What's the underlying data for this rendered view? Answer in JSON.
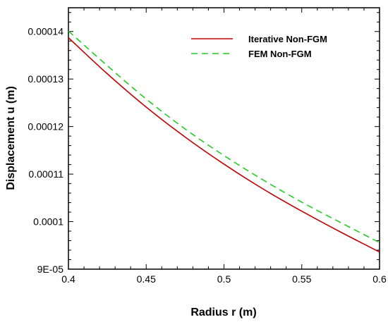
{
  "chart_data": {
    "type": "line",
    "xlabel": "Radius r (m)",
    "ylabel": "Displacement u (m)",
    "xlim": [
      0.4,
      0.6
    ],
    "ylim": [
      9e-05,
      0.000145
    ],
    "x_ticks": [
      0.4,
      0.45,
      0.5,
      0.55,
      0.6
    ],
    "x_tick_labels": [
      "0.4",
      "0.45",
      "0.5",
      "0.55",
      "0.6"
    ],
    "y_ticks": [
      9e-05,
      0.0001,
      0.00011,
      0.00012,
      0.00013,
      0.00014
    ],
    "y_tick_labels": [
      "9E-05",
      "0.0001",
      "0.00011",
      "0.00012",
      "0.00013",
      "0.00014"
    ],
    "grid": false,
    "legend_position": "top-right",
    "series": [
      {
        "name": "Iterative Non-FGM",
        "color": "#c00000",
        "style": "solid",
        "x": [
          0.4,
          0.425,
          0.45,
          0.475,
          0.5,
          0.525,
          0.55,
          0.575,
          0.6
        ],
        "y": [
          0.0001387,
          0.0001311,
          0.0001241,
          0.0001178,
          0.0001121,
          0.0001069,
          0.0001022,
          9.78e-05,
          9.36e-05
        ]
      },
      {
        "name": "FEM Non-FGM",
        "color": "#22cc22",
        "style": "dashed",
        "x": [
          0.4,
          0.425,
          0.45,
          0.475,
          0.5,
          0.525,
          0.55,
          0.575,
          0.6
        ],
        "y": [
          0.0001401,
          0.0001328,
          0.0001258,
          0.0001195,
          0.0001139,
          0.0001088,
          0.0001041,
          9.98e-05,
          9.56e-05
        ]
      }
    ]
  }
}
